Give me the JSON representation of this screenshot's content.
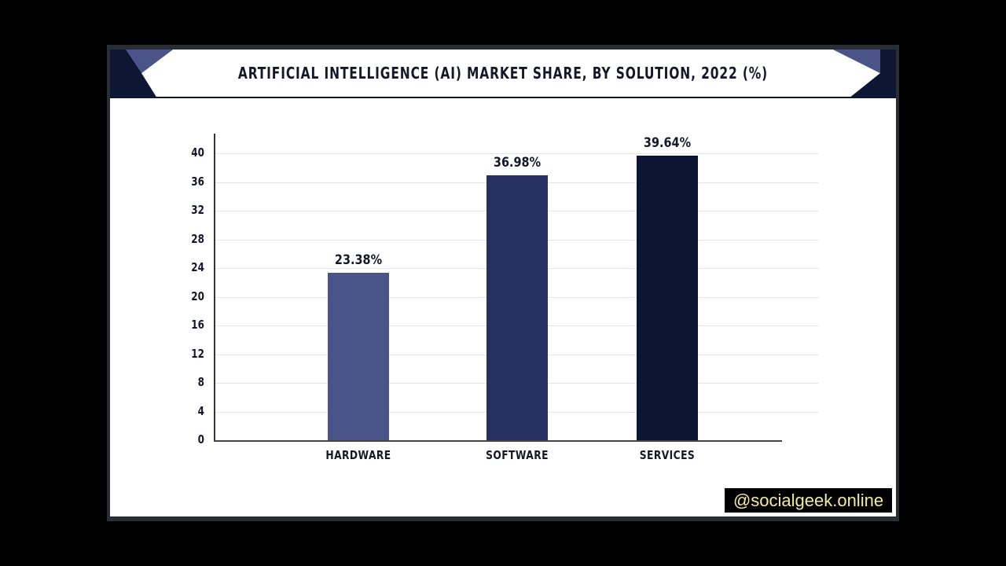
{
  "chart_data": {
    "type": "bar",
    "title": "ARTIFICIAL INTELLIGENCE (AI) MARKET SHARE, BY SOLUTION, 2022 (%)",
    "categories": [
      "HARDWARE",
      "SOFTWARE",
      "SERVICES"
    ],
    "values": [
      23.38,
      36.98,
      39.64
    ],
    "value_labels": [
      "23.38%",
      "36.98%",
      "39.64%"
    ],
    "bar_colors": [
      "#4a5489",
      "#263162",
      "#0c1534"
    ],
    "xlabel": "",
    "ylabel": "",
    "ylim": [
      0,
      40
    ],
    "yticks": [
      0,
      4,
      8,
      12,
      16,
      20,
      24,
      28,
      32,
      36,
      40
    ],
    "grid": true,
    "legend": null
  },
  "header": {
    "title": "ARTIFICIAL INTELLIGENCE (AI) MARKET SHARE, BY SOLUTION, 2022 (%)"
  },
  "yaxis": {
    "ticks": [
      "0",
      "4",
      "8",
      "12",
      "16",
      "20",
      "24",
      "28",
      "32",
      "36",
      "40"
    ]
  },
  "bars": [
    {
      "category": "HARDWARE",
      "label": "23.38%",
      "value": 23.38,
      "color": "#4a5489"
    },
    {
      "category": "SOFTWARE",
      "label": "36.98%",
      "value": 36.98,
      "color": "#263162"
    },
    {
      "category": "SERVICES",
      "label": "39.64%",
      "value": 39.64,
      "color": "#0c1534"
    }
  ],
  "watermark": {
    "text": "@socialgeek.online"
  },
  "colors": {
    "accent_dark": "#0d1633",
    "accent_light": "#4a5489"
  }
}
